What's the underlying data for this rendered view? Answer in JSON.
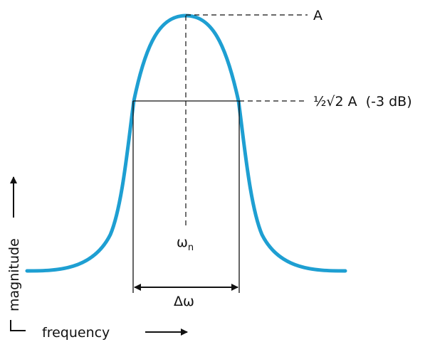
{
  "labels": {
    "peak": "A",
    "half_power": "½√2 A  (-3 dB)",
    "center_freq": "ω",
    "center_freq_sub": "n",
    "bandwidth": "Δω",
    "y_axis": "magnitude",
    "x_axis": "frequency"
  },
  "colors": {
    "curve": "#1e9fd2",
    "lines": "#111111"
  }
}
